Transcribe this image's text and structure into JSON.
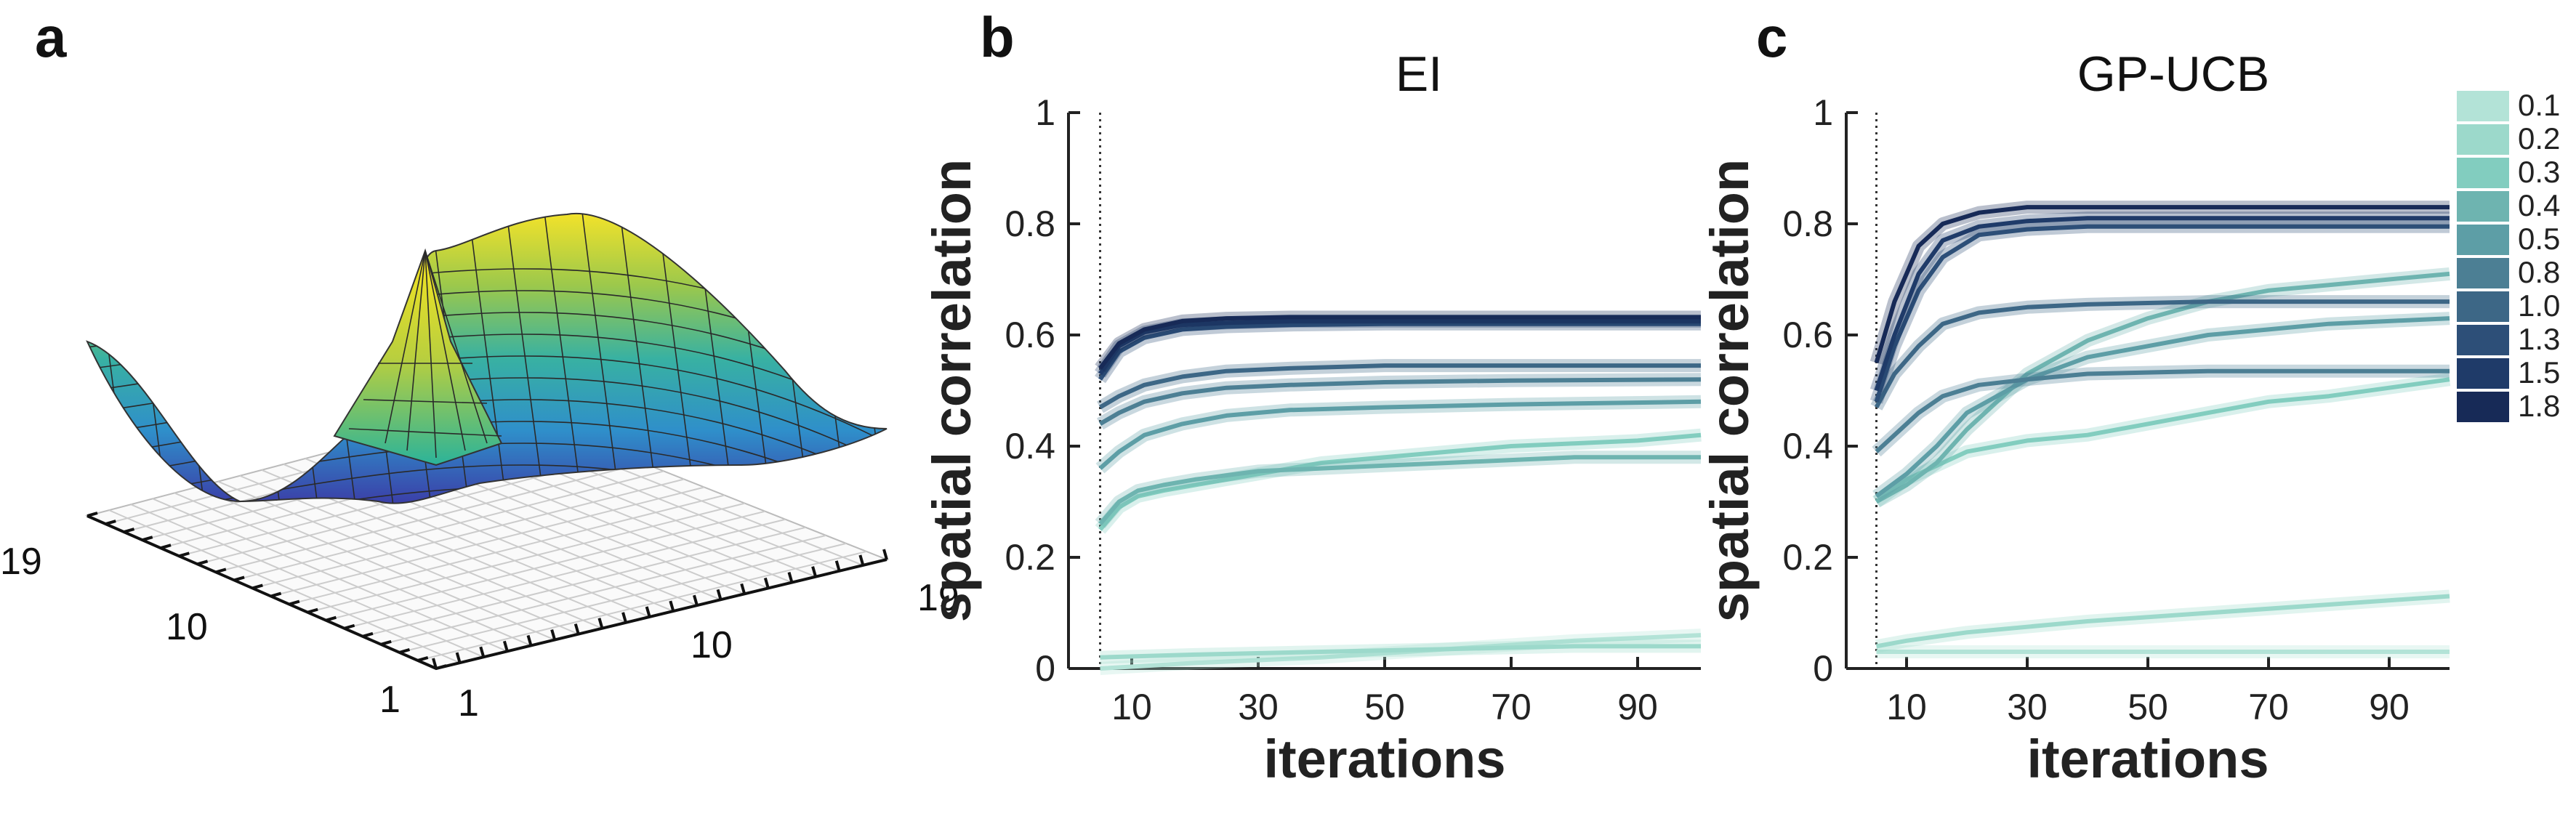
{
  "panels": {
    "a": {
      "letter": "a",
      "surface_ticks": {
        "left_axis": [
          "19",
          "10",
          "1"
        ],
        "right_axis": [
          "1",
          "10",
          "19"
        ]
      }
    },
    "b": {
      "letter": "b"
    },
    "c": {
      "letter": "c"
    }
  },
  "colors": {
    "lengthscale": {
      "0.1": "#b3e3d7",
      "0.2": "#9cd9cb",
      "0.3": "#82cdbf",
      "0.4": "#6eb4b0",
      "0.5": "#5d9ea6",
      "0.8": "#4c7f94",
      "1.0": "#3d6786",
      "1.3": "#2d4f78",
      "1.5": "#1f3b69",
      "1.8": "#172a57"
    }
  },
  "legend": {
    "entries": [
      "0.1",
      "0.2",
      "0.3",
      "0.4",
      "0.5",
      "0.8",
      "1.0",
      "1.3",
      "1.5",
      "1.8"
    ]
  },
  "chart_data": [
    {
      "id": "ei",
      "type": "line",
      "title": "EI",
      "xlabel": "iterations",
      "ylabel": "spatial correlation",
      "xlim": [
        0,
        100
      ],
      "ylim": [
        0,
        1
      ],
      "xticks": [
        "10",
        "30",
        "50",
        "70",
        "90"
      ],
      "yticks": [
        "0",
        "0.2",
        "0.4",
        "0.6",
        "0.8",
        "1"
      ],
      "vline_x": 5,
      "series": [
        {
          "name": "0.1",
          "x": [
            5,
            20,
            40,
            60,
            80,
            100
          ],
          "values": [
            0.0,
            0.01,
            0.02,
            0.035,
            0.05,
            0.06
          ]
        },
        {
          "name": "0.2",
          "x": [
            5,
            20,
            40,
            60,
            80,
            100
          ],
          "values": [
            0.02,
            0.025,
            0.03,
            0.035,
            0.04,
            0.04
          ]
        },
        {
          "name": "0.3",
          "x": [
            5,
            8,
            11,
            15,
            20,
            30,
            40,
            50,
            60,
            70,
            80,
            90,
            100
          ],
          "values": [
            0.25,
            0.29,
            0.31,
            0.32,
            0.33,
            0.35,
            0.37,
            0.38,
            0.39,
            0.4,
            0.405,
            0.41,
            0.42
          ]
        },
        {
          "name": "0.4",
          "x": [
            5,
            8,
            11,
            15,
            20,
            30,
            40,
            50,
            60,
            70,
            80,
            90,
            100
          ],
          "values": [
            0.26,
            0.3,
            0.32,
            0.33,
            0.34,
            0.355,
            0.36,
            0.365,
            0.37,
            0.375,
            0.38,
            0.38,
            0.38
          ]
        },
        {
          "name": "0.5",
          "x": [
            5,
            8,
            12,
            18,
            25,
            35,
            50,
            70,
            100
          ],
          "values": [
            0.36,
            0.39,
            0.42,
            0.44,
            0.455,
            0.465,
            0.47,
            0.475,
            0.48
          ]
        },
        {
          "name": "0.8",
          "x": [
            5,
            8,
            12,
            18,
            25,
            35,
            50,
            70,
            100
          ],
          "values": [
            0.44,
            0.46,
            0.48,
            0.495,
            0.505,
            0.51,
            0.515,
            0.518,
            0.52
          ]
        },
        {
          "name": "1.0",
          "x": [
            5,
            8,
            12,
            18,
            25,
            35,
            50,
            70,
            100
          ],
          "values": [
            0.47,
            0.49,
            0.51,
            0.525,
            0.535,
            0.54,
            0.545,
            0.545,
            0.545
          ]
        },
        {
          "name": "1.3",
          "x": [
            5,
            8,
            12,
            18,
            25,
            35,
            50,
            70,
            100
          ],
          "values": [
            0.52,
            0.57,
            0.595,
            0.61,
            0.615,
            0.618,
            0.62,
            0.62,
            0.62
          ]
        },
        {
          "name": "1.5",
          "x": [
            5,
            8,
            12,
            18,
            25,
            35,
            50,
            70,
            100
          ],
          "values": [
            0.53,
            0.58,
            0.605,
            0.618,
            0.622,
            0.625,
            0.625,
            0.625,
            0.625
          ]
        },
        {
          "name": "1.8",
          "x": [
            5,
            8,
            12,
            18,
            25,
            35,
            50,
            70,
            100
          ],
          "values": [
            0.54,
            0.585,
            0.61,
            0.625,
            0.63,
            0.632,
            0.632,
            0.632,
            0.632
          ]
        }
      ]
    },
    {
      "id": "gpucb",
      "type": "line",
      "title": "GP-UCB",
      "xlabel": "iterations",
      "ylabel": "spatial correlation",
      "xlim": [
        0,
        100
      ],
      "ylim": [
        0,
        1
      ],
      "xticks": [
        "10",
        "30",
        "50",
        "70",
        "90"
      ],
      "yticks": [
        "0",
        "0.2",
        "0.4",
        "0.6",
        "0.8",
        "1"
      ],
      "vline_x": 5,
      "series": [
        {
          "name": "0.1",
          "x": [
            5,
            20,
            40,
            60,
            80,
            100
          ],
          "values": [
            0.03,
            0.03,
            0.03,
            0.03,
            0.03,
            0.03
          ]
        },
        {
          "name": "0.2",
          "x": [
            5,
            10,
            20,
            40,
            60,
            80,
            100
          ],
          "values": [
            0.04,
            0.05,
            0.065,
            0.085,
            0.1,
            0.115,
            0.13
          ]
        },
        {
          "name": "0.3",
          "x": [
            5,
            10,
            20,
            30,
            40,
            50,
            60,
            70,
            80,
            90,
            100
          ],
          "values": [
            0.3,
            0.34,
            0.39,
            0.41,
            0.42,
            0.44,
            0.46,
            0.48,
            0.49,
            0.505,
            0.52
          ]
        },
        {
          "name": "0.4",
          "x": [
            5,
            10,
            15,
            20,
            30,
            40,
            50,
            60,
            70,
            80,
            90,
            100
          ],
          "values": [
            0.3,
            0.33,
            0.37,
            0.43,
            0.53,
            0.59,
            0.63,
            0.66,
            0.68,
            0.69,
            0.7,
            0.71
          ]
        },
        {
          "name": "0.5",
          "x": [
            5,
            10,
            15,
            20,
            30,
            40,
            50,
            60,
            70,
            80,
            90,
            100
          ],
          "values": [
            0.31,
            0.35,
            0.4,
            0.46,
            0.52,
            0.56,
            0.58,
            0.6,
            0.61,
            0.62,
            0.625,
            0.63
          ]
        },
        {
          "name": "0.8",
          "x": [
            5,
            8,
            12,
            16,
            22,
            30,
            40,
            60,
            80,
            100
          ],
          "values": [
            0.39,
            0.42,
            0.46,
            0.49,
            0.51,
            0.52,
            0.53,
            0.535,
            0.535,
            0.535
          ]
        },
        {
          "name": "1.0",
          "x": [
            5,
            8,
            12,
            16,
            22,
            30,
            40,
            60,
            80,
            100
          ],
          "values": [
            0.47,
            0.53,
            0.58,
            0.62,
            0.64,
            0.65,
            0.655,
            0.66,
            0.66,
            0.66
          ]
        },
        {
          "name": "1.3",
          "x": [
            5,
            8,
            12,
            16,
            22,
            30,
            40,
            60,
            80,
            100
          ],
          "values": [
            0.48,
            0.58,
            0.68,
            0.74,
            0.78,
            0.79,
            0.795,
            0.795,
            0.795,
            0.795
          ]
        },
        {
          "name": "1.5",
          "x": [
            5,
            8,
            12,
            16,
            22,
            30,
            40,
            60,
            80,
            100
          ],
          "values": [
            0.5,
            0.6,
            0.71,
            0.77,
            0.795,
            0.805,
            0.81,
            0.81,
            0.81,
            0.81
          ]
        },
        {
          "name": "1.8",
          "x": [
            5,
            8,
            12,
            16,
            22,
            30,
            40,
            60,
            80,
            100
          ],
          "values": [
            0.55,
            0.66,
            0.76,
            0.8,
            0.82,
            0.83,
            0.83,
            0.83,
            0.83,
            0.83
          ]
        }
      ]
    }
  ]
}
